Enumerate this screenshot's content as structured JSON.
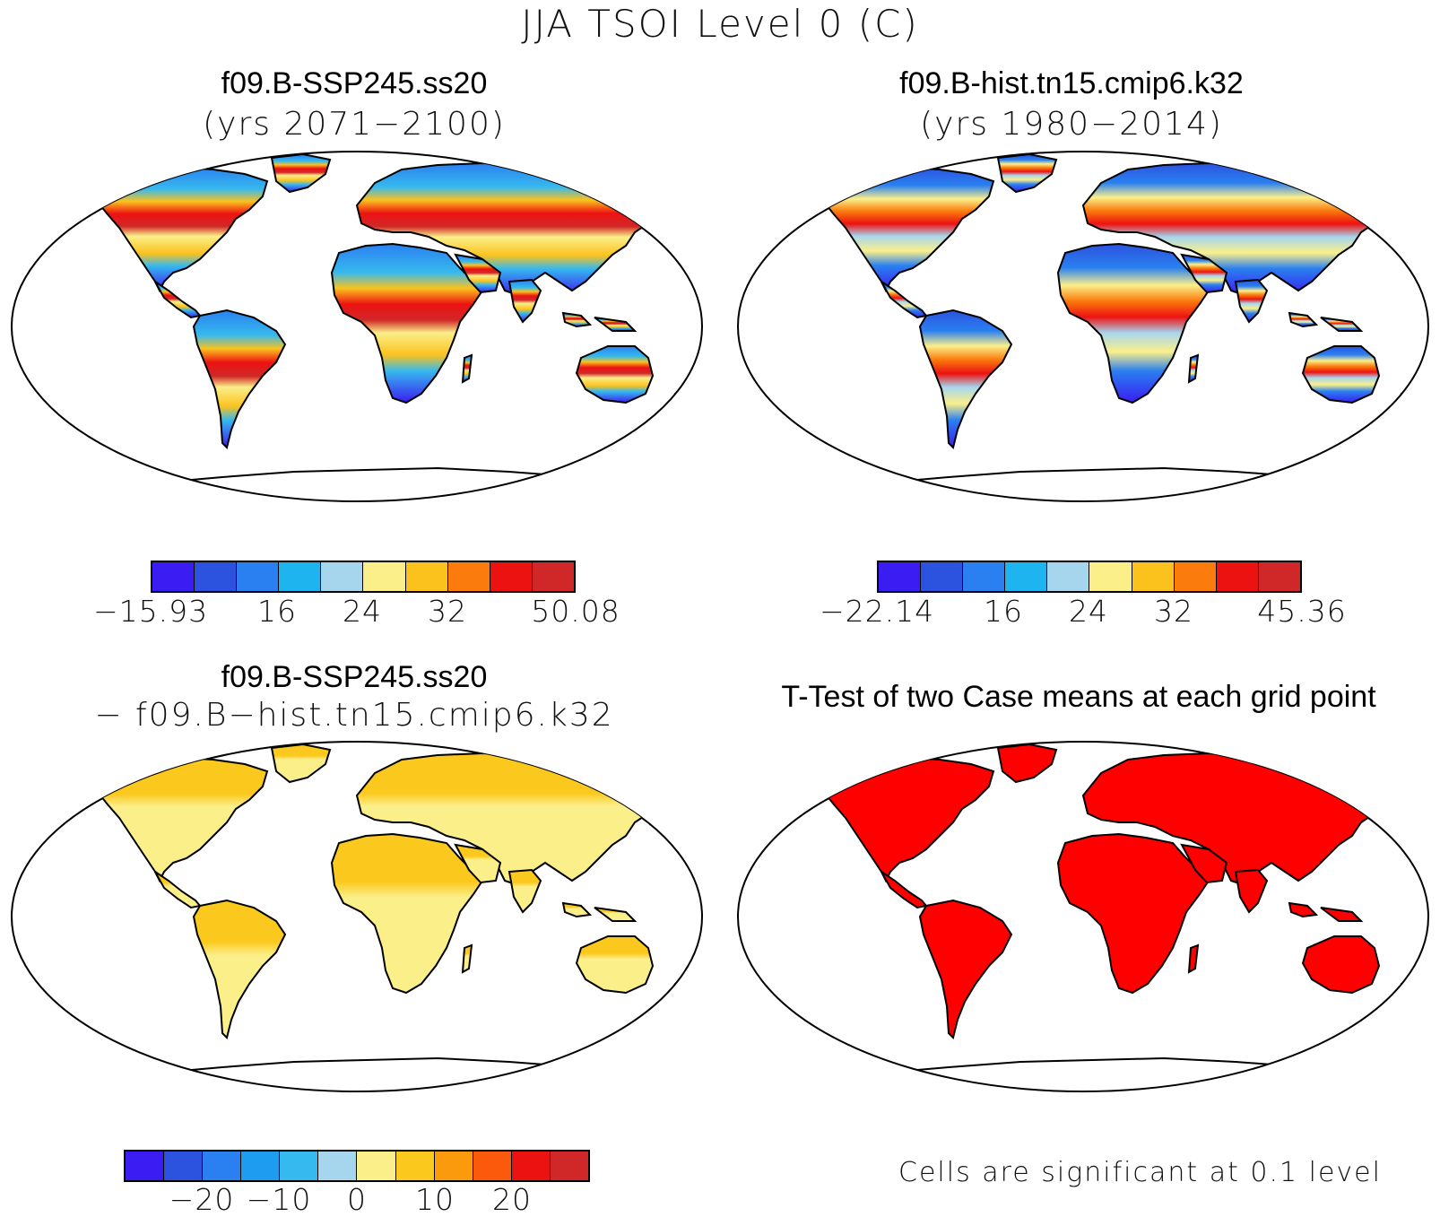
{
  "main_title": "JJA TSOI Level 0 (C)",
  "colors": {
    "scale10": [
      "#3b1cf2",
      "#2c52e0",
      "#2a80f0",
      "#1eb4ef",
      "#a6d6ee",
      "#fbef8a",
      "#fbc21e",
      "#fb7b0c",
      "#ed1212",
      "#d02828"
    ],
    "scale12": [
      "#3b1cf2",
      "#2c52e0",
      "#2a80f0",
      "#1e9cf0",
      "#36b9ee",
      "#a6d6ee",
      "#fbef8a",
      "#fbc81e",
      "#fb9a0c",
      "#fb5a0c",
      "#ed1212",
      "#d02828"
    ],
    "significant": "#ff0000",
    "coast": "#000000"
  },
  "panels": [
    {
      "id": "case1",
      "title": "f09.B-SSP245.ss20",
      "subtitle": "(yrs 2071−2100)",
      "colorbar_labels": [
        "−15.93",
        "16",
        "24",
        "32",
        "50.08"
      ]
    },
    {
      "id": "case2",
      "title": "f09.B-hist.tn15.cmip6.k32",
      "subtitle": "(yrs 1980−2014)",
      "colorbar_labels": [
        "−22.14",
        "16",
        "24",
        "32",
        "45.36"
      ]
    },
    {
      "id": "difference",
      "title": "f09.B-SSP245.ss20",
      "subtitle": "− f09.B−hist.tn15.cmip6.k32",
      "colorbar_labels": [
        "−20",
        "−10",
        "0",
        "10",
        "20"
      ]
    },
    {
      "id": "ttest",
      "title": "T-Test of two Case means at each grid point",
      "note": "Cells are significant at 0.1 level"
    }
  ]
}
